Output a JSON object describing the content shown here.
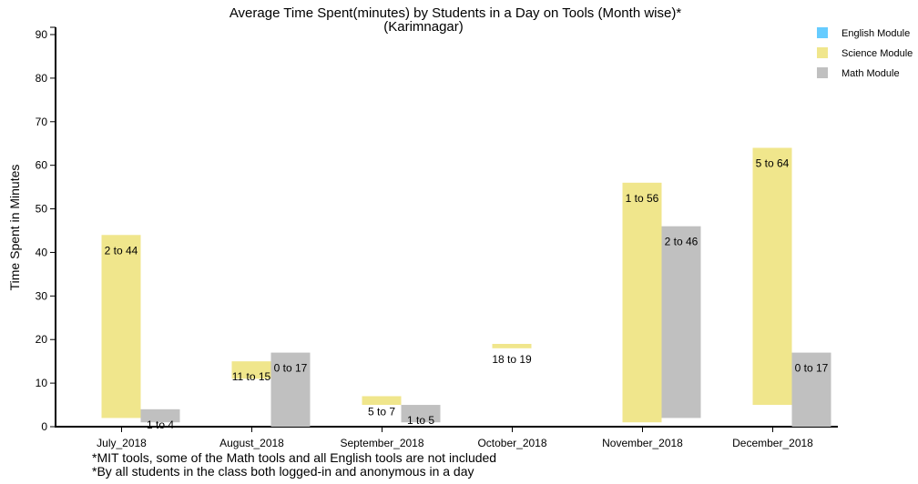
{
  "chart_data": {
    "type": "bar",
    "variant": "floating-range",
    "title": "Average Time Spent(minutes) by Students in a Day on Tools (Month wise)*",
    "subtitle": "(Karimnagar)",
    "ylabel": "Time Spent in Minutes",
    "xlabel": "",
    "ylim": [
      0,
      90
    ],
    "yticks": [
      0,
      10,
      20,
      30,
      40,
      50,
      60,
      70,
      80,
      90
    ],
    "grid": false,
    "legend_position": "top-right",
    "categories": [
      "July_2018",
      "August_2018",
      "September_2018",
      "October_2018",
      "November_2018",
      "December_2018"
    ],
    "series": [
      {
        "name": "English Module",
        "color": "#66ccff",
        "ranges": [
          null,
          null,
          null,
          null,
          null,
          null
        ],
        "labels": [
          "",
          "",
          "",
          "",
          "",
          ""
        ]
      },
      {
        "name": "Science Module",
        "color": "#f0e68c",
        "ranges": [
          [
            2,
            44
          ],
          [
            11,
            15
          ],
          [
            5,
            7
          ],
          [
            18,
            19
          ],
          [
            1,
            56
          ],
          [
            5,
            64
          ]
        ],
        "labels": [
          "2 to 44",
          "11 to 15",
          "5 to 7",
          "18 to 19",
          "1 to 56",
          "5 to 64"
        ]
      },
      {
        "name": "Math Module",
        "color": "#c0c0c0",
        "ranges": [
          [
            1,
            4
          ],
          [
            0,
            17
          ],
          [
            1,
            5
          ],
          null,
          [
            2,
            46
          ],
          [
            0,
            17
          ]
        ],
        "labels": [
          "1 to 4",
          "0 to 17",
          "1 to 5",
          "",
          "2 to 46",
          "0 to 17"
        ]
      }
    ]
  },
  "notes": [
    "*MIT tools, some of the Math tools and all English tools are not included",
    "*By all students in the class both logged-in and anonymous in a day"
  ]
}
